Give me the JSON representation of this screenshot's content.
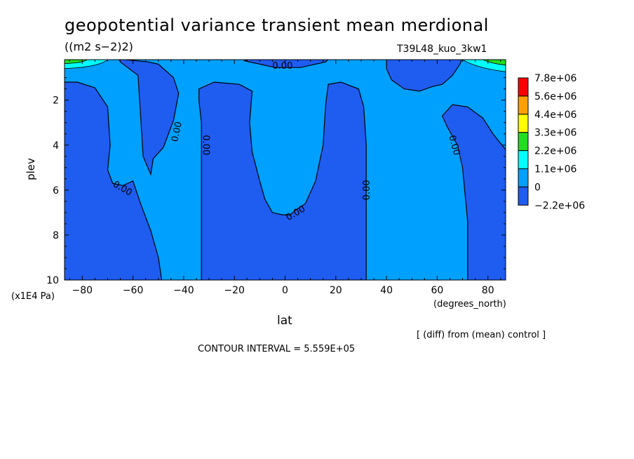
{
  "title": "geopotential variance transient mean merdional",
  "units": "((m2 s−2)2)",
  "run_id": "T39L48_kuo_3kw1",
  "y_axis_label": "plev",
  "y_axis_unit": "(x1E4 Pa)",
  "x_axis_label": "lat",
  "x_axis_unit": "(degrees_north)",
  "diff_note": "[ (diff) from (mean) control ]",
  "contour_interval": "CONTOUR INTERVAL = 5.559E+05",
  "colors": {
    "dark_blue": "#1f5cf0",
    "light_blue": "#00a0ff",
    "cyan": "#00ffff",
    "green": "#22dd22",
    "yellow": "#ffff00",
    "orange": "#ffa000",
    "red": "#ff0000"
  },
  "chart_data": {
    "type": "heatmap",
    "subtype": "filled contour",
    "xlim": [
      -87,
      87
    ],
    "ylim": [
      10,
      0.2
    ],
    "x_ticks": [
      -80,
      -60,
      -40,
      -20,
      0,
      20,
      40,
      60,
      80
    ],
    "x_tick_labels": [
      "−80",
      "−60",
      "−40",
      "−20",
      "0",
      "20",
      "40",
      "60",
      "80"
    ],
    "y_ticks": [
      2,
      4,
      6,
      8,
      10
    ],
    "y_tick_labels": [
      "2",
      "4",
      "6",
      "8",
      "10"
    ],
    "contour_labels": [
      "0.00",
      "0.00",
      "0.00",
      "0.00",
      "0.00",
      "0.00",
      "0.00"
    ],
    "colorbar": {
      "levels": [
        "7.8e+06",
        "5.6e+06",
        "4.4e+06",
        "3.3e+06",
        "2.2e+06",
        "1.1e+06",
        "0",
        "−2.2e+06"
      ],
      "colors": [
        "#ff0000",
        "#ffa000",
        "#ffff00",
        "#22dd22",
        "#00ffff",
        "#00a0ff",
        "#1f5cf0"
      ]
    },
    "regions": [
      {
        "name": "negative_sh_polar",
        "value_range": "-2.2e+06 to 0",
        "lat_range": [
          -87,
          -52
        ],
        "plev_range": [
          1.2,
          10
        ]
      },
      {
        "name": "negative_sh_mid",
        "value_range": "-2.2e+06 to 0",
        "lat_range": [
          -52,
          -40
        ],
        "plev_range": [
          0.2,
          5.3
        ]
      },
      {
        "name": "negative_sh_subtropics",
        "value_range": "-2.2e+06 to 0",
        "lat_range": [
          -33,
          15
        ],
        "plev_range": [
          1.5,
          10
        ]
      },
      {
        "name": "negative_nh_midlat",
        "value_range": "-2.2e+06 to 0",
        "lat_range": [
          -10,
          32
        ],
        "plev_range": [
          1.3,
          10
        ]
      },
      {
        "name": "negative_nh_polar",
        "value_range": "-2.2e+06 to 0",
        "lat_range": [
          62,
          87
        ],
        "plev_range": [
          1.8,
          10
        ]
      },
      {
        "name": "negative_nh_upper",
        "value_range": "-2.2e+06 to 0",
        "lat_range": [
          40,
          87
        ],
        "plev_range": [
          0.2,
          1.6
        ]
      },
      {
        "name": "positive_top_sh",
        "value_range": "0 to 2.2e+06",
        "lat_range": [
          -87,
          -70
        ],
        "plev_range": [
          0.2,
          0.5
        ]
      },
      {
        "name": "positive_top_nh",
        "value_range": "0 to 2.2e+06",
        "lat_range": [
          70,
          87
        ],
        "plev_range": [
          0.2,
          0.5
        ]
      }
    ]
  }
}
